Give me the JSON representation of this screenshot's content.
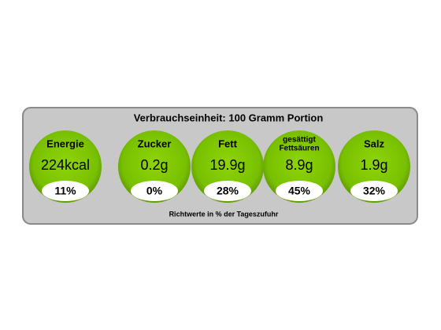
{
  "header": {
    "title": "Verbrauchseinheit: 100 Gramm Portion"
  },
  "items": [
    {
      "label": [
        "Energie"
      ],
      "amount": "224kcal",
      "percent": "11%"
    },
    {
      "label": [
        "Zucker"
      ],
      "amount": "0.2g",
      "percent": "0%"
    },
    {
      "label": [
        "Fett"
      ],
      "amount": "19.9g",
      "percent": "28%"
    },
    {
      "label": [
        "gesättigt",
        "Fettsäuren"
      ],
      "amount": "8.9g",
      "percent": "45%"
    },
    {
      "label": [
        "Salz"
      ],
      "amount": "1.9g",
      "percent": "32%"
    }
  ],
  "footer": {
    "note": "Richtwerte in % der Tageszufuhr"
  }
}
